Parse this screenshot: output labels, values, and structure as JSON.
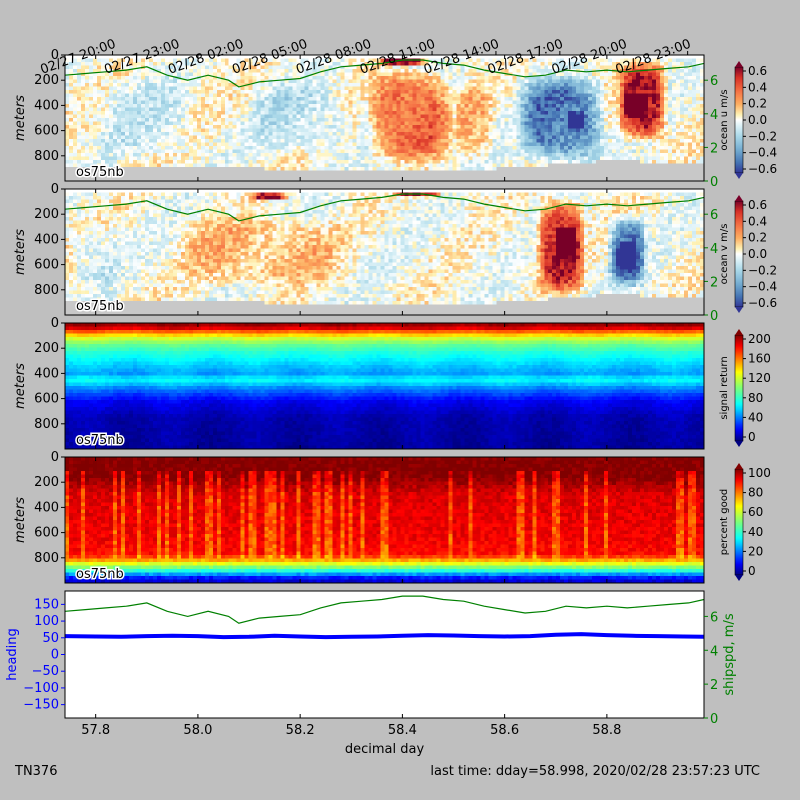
{
  "figure": {
    "cruise": "TN376",
    "last_time": "last time: dday=58.998,  2020/02/28 23:57:23 UTC"
  },
  "chart_data": [
    {
      "type": "heatmap",
      "panel": "ocean_u",
      "instrument_label": "os75nb",
      "ylabel": "meters",
      "ylim": [
        1000,
        0
      ],
      "yticks": [
        0,
        200,
        400,
        600,
        800
      ],
      "colorbar_label": "ocean u m/s",
      "colorbar_ticks": [
        "0.6",
        "0.4",
        "0.2",
        "0.0",
        "−0.2",
        "−0.4",
        "−0.6"
      ],
      "clim": [
        -0.6,
        0.6
      ],
      "colormap": "RdYlBu_r",
      "right_axis": {
        "label": "",
        "ticks": [
          0,
          2,
          4,
          6
        ],
        "color": "#008000"
      },
      "top_time_ticks": [
        "02/27 20:00",
        "02/27 23:00",
        "02/28 02:00",
        "02/28 05:00",
        "02/28 08:00",
        "02/28 11:00",
        "02/28 14:00",
        "02/28 17:00",
        "02/28 20:00",
        "02/28 23:00"
      ],
      "features": [
        {
          "x": [
            58.33,
            58.5
          ],
          "depth": [
            100,
            870
          ],
          "value": 0.35
        },
        {
          "x": [
            58.5,
            58.58
          ],
          "depth": [
            200,
            850
          ],
          "value": 0.15
        },
        {
          "x": [
            58.62,
            58.8
          ],
          "depth": [
            150,
            870
          ],
          "value": -0.45
        },
        {
          "x": [
            58.72,
            58.76
          ],
          "depth": [
            450,
            600
          ],
          "value": -0.6
        },
        {
          "x": [
            58.82,
            58.92
          ],
          "depth": [
            50,
            700
          ],
          "value": 0.55
        },
        {
          "x": [
            58.83,
            58.88
          ],
          "depth": [
            300,
            500
          ],
          "value": 0.6
        },
        {
          "x": [
            57.8,
            58.0
          ],
          "depth": [
            150,
            850
          ],
          "value": -0.08
        },
        {
          "x": [
            58.1,
            58.3
          ],
          "depth": [
            200,
            800
          ],
          "value": -0.12
        },
        {
          "x": [
            58.35,
            58.45
          ],
          "depth": [
            20,
            80
          ],
          "value": 0.6
        }
      ]
    },
    {
      "type": "heatmap",
      "panel": "ocean_v",
      "instrument_label": "os75nb",
      "ylabel": "meters",
      "ylim": [
        1000,
        0
      ],
      "yticks": [
        0,
        200,
        400,
        600,
        800
      ],
      "colorbar_label": "ocean v m/s",
      "colorbar_ticks": [
        "0.6",
        "0.4",
        "0.2",
        "0.0",
        "−0.2",
        "−0.4",
        "−0.6"
      ],
      "clim": [
        -0.6,
        0.6
      ],
      "colormap": "RdYlBu_r",
      "right_axis": {
        "label": "",
        "ticks": [
          0,
          2,
          4,
          6
        ],
        "color": "#008000"
      },
      "features": [
        {
          "x": [
            58.66,
            58.76
          ],
          "depth": [
            50,
            850
          ],
          "value": 0.5
        },
        {
          "x": [
            58.7,
            58.74
          ],
          "depth": [
            300,
            550
          ],
          "value": 0.6
        },
        {
          "x": [
            58.8,
            58.88
          ],
          "depth": [
            200,
            800
          ],
          "value": -0.45
        },
        {
          "x": [
            58.82,
            58.86
          ],
          "depth": [
            400,
            650
          ],
          "value": -0.6
        },
        {
          "x": [
            57.95,
            58.3
          ],
          "depth": [
            200,
            800
          ],
          "value": 0.15
        },
        {
          "x": [
            58.1,
            58.18
          ],
          "depth": [
            30,
            90
          ],
          "value": 0.5
        },
        {
          "x": [
            58.38,
            58.48
          ],
          "depth": [
            20,
            70
          ],
          "value": 0.55
        },
        {
          "x": [
            57.75,
            57.85
          ],
          "depth": [
            300,
            800
          ],
          "value": -0.08
        }
      ]
    },
    {
      "type": "heatmap",
      "panel": "signal_return",
      "instrument_label": "os75nb",
      "ylabel": "meters",
      "ylim": [
        1000,
        0
      ],
      "yticks": [
        0,
        200,
        400,
        600,
        800
      ],
      "colorbar_label": "signal return",
      "colorbar_ticks": [
        "200",
        "160",
        "120",
        "80",
        "40",
        "0"
      ],
      "clim": [
        0,
        200
      ],
      "colormap": "jet",
      "profile": [
        {
          "depth": 0,
          "value": 200
        },
        {
          "depth": 40,
          "value": 185
        },
        {
          "depth": 80,
          "value": 150
        },
        {
          "depth": 120,
          "value": 120
        },
        {
          "depth": 170,
          "value": 95
        },
        {
          "depth": 240,
          "value": 75
        },
        {
          "depth": 330,
          "value": 60
        },
        {
          "depth": 400,
          "value": 50
        },
        {
          "depth": 450,
          "value": 70
        },
        {
          "depth": 520,
          "value": 45
        },
        {
          "depth": 620,
          "value": 20
        },
        {
          "depth": 750,
          "value": 8
        },
        {
          "depth": 1000,
          "value": 5
        }
      ]
    },
    {
      "type": "heatmap",
      "panel": "percent_good",
      "instrument_label": "os75nb",
      "ylabel": "meters",
      "ylim": [
        1000,
        0
      ],
      "yticks": [
        0,
        200,
        400,
        600,
        800
      ],
      "colorbar_label": "percent good",
      "colorbar_ticks": [
        "100",
        "80",
        "60",
        "40",
        "20",
        "0"
      ],
      "clim": [
        0,
        100
      ],
      "colormap": "jet",
      "profile": [
        {
          "depth": 0,
          "value": 100
        },
        {
          "depth": 150,
          "value": 100
        },
        {
          "depth": 300,
          "value": 92
        },
        {
          "depth": 650,
          "value": 90
        },
        {
          "depth": 780,
          "value": 88
        },
        {
          "depth": 840,
          "value": 65
        },
        {
          "depth": 900,
          "value": 40
        },
        {
          "depth": 950,
          "value": 15
        },
        {
          "depth": 1000,
          "value": 5
        }
      ]
    },
    {
      "type": "line",
      "panel": "heading_shipspd",
      "xlabel": "decimal day",
      "xlim": [
        57.74,
        58.99
      ],
      "xticks": [
        57.8,
        58.0,
        58.2,
        58.4,
        58.6,
        58.8
      ],
      "xticklabels": [
        "57.8",
        "58.0",
        "58.2",
        "58.4",
        "58.6",
        "58.8"
      ],
      "ylabel": "heading",
      "ylim": [
        -190,
        190
      ],
      "yticks": [
        150,
        100,
        50,
        0,
        -50,
        -100,
        -150
      ],
      "yticklabels": [
        "150",
        "100",
        "50",
        "0",
        "−50",
        "−100",
        "−150"
      ],
      "y2label": "shipspd, m/s",
      "y2lim": [
        0,
        7.5
      ],
      "y2ticks": [
        0,
        2,
        4,
        6
      ],
      "series": [
        {
          "name": "",
          "color": "#0000ff",
          "axis": "left",
          "x": [
            57.74,
            57.8,
            57.85,
            57.9,
            57.95,
            58.0,
            58.05,
            58.1,
            58.15,
            58.2,
            58.25,
            58.3,
            58.35,
            58.4,
            58.45,
            58.5,
            58.55,
            58.6,
            58.65,
            58.7,
            58.75,
            58.8,
            58.85,
            58.9,
            58.95,
            58.99
          ],
          "y": [
            55,
            54,
            53,
            55,
            56,
            55,
            52,
            53,
            56,
            54,
            52,
            53,
            54,
            56,
            58,
            57,
            55,
            54,
            55,
            59,
            61,
            58,
            56,
            55,
            54,
            53
          ]
        },
        {
          "name": "",
          "color": "#008000",
          "axis": "right",
          "x": [
            57.74,
            57.78,
            57.82,
            57.86,
            57.9,
            57.94,
            57.98,
            58.02,
            58.06,
            58.08,
            58.12,
            58.16,
            58.2,
            58.24,
            58.28,
            58.32,
            58.36,
            58.4,
            58.44,
            58.48,
            58.52,
            58.56,
            58.6,
            58.64,
            58.68,
            58.72,
            58.76,
            58.8,
            58.84,
            58.88,
            58.92,
            58.96,
            58.99
          ],
          "y": [
            6.3,
            6.4,
            6.5,
            6.6,
            6.8,
            6.3,
            6.0,
            6.3,
            6.0,
            5.6,
            5.9,
            6.0,
            6.1,
            6.5,
            6.8,
            6.9,
            7.0,
            7.2,
            7.2,
            7.0,
            6.9,
            6.6,
            6.4,
            6.2,
            6.3,
            6.6,
            6.5,
            6.6,
            6.5,
            6.6,
            6.7,
            6.8,
            7.0
          ]
        }
      ]
    }
  ],
  "shipspd_overlay": {
    "x": [
      57.74,
      57.78,
      57.82,
      57.86,
      57.9,
      57.94,
      57.98,
      58.02,
      58.06,
      58.08,
      58.12,
      58.16,
      58.2,
      58.24,
      58.28,
      58.32,
      58.36,
      58.4,
      58.44,
      58.48,
      58.52,
      58.56,
      58.6,
      58.64,
      58.68,
      58.72,
      58.76,
      58.8,
      58.84,
      58.88,
      58.92,
      58.96,
      58.99
    ],
    "y": [
      6.3,
      6.4,
      6.5,
      6.6,
      6.8,
      6.3,
      6.0,
      6.3,
      6.0,
      5.6,
      5.9,
      6.0,
      6.1,
      6.5,
      6.8,
      6.9,
      7.0,
      7.2,
      7.2,
      7.0,
      6.9,
      6.6,
      6.4,
      6.2,
      6.3,
      6.6,
      6.5,
      6.6,
      6.5,
      6.6,
      6.7,
      6.8,
      7.0
    ]
  },
  "shared_xlim": [
    57.74,
    58.99
  ],
  "bottom_gray_depth": [
    {
      "x": 57.74,
      "d": 880
    },
    {
      "x": 58.1,
      "d": 900
    },
    {
      "x": 58.4,
      "d": 930
    },
    {
      "x": 58.6,
      "d": 900
    },
    {
      "x": 58.8,
      "d": 840
    },
    {
      "x": 58.99,
      "d": 860
    }
  ]
}
